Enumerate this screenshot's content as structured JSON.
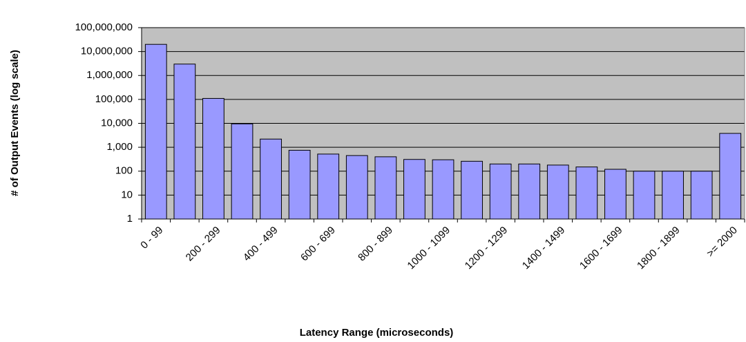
{
  "chart_data": {
    "type": "bar",
    "x_label": "Latency Range (microseconds)",
    "y_label": "# of Output Events (log scale)",
    "categories": [
      "0 - 99",
      null,
      "200 - 299",
      null,
      "400 - 499",
      null,
      "600 - 699",
      null,
      "800 - 899",
      null,
      "1000 - 1099",
      null,
      "1200 - 1299",
      null,
      "1400 - 1499",
      null,
      "1600 - 1699",
      null,
      "1800 - 1899",
      null,
      ">= 2000"
    ],
    "values": [
      20000000,
      3000000,
      110000,
      9500,
      2200,
      750,
      520,
      450,
      400,
      310,
      300,
      260,
      200,
      200,
      180,
      150,
      120,
      100,
      100,
      100,
      3800
    ],
    "color": "#9999ff",
    "log_scale": true,
    "grid": true,
    "ylim": [
      1,
      100000000
    ],
    "yticks": [
      1,
      10,
      100,
      {
        "value": 1000,
        "label": "1,000"
      },
      {
        "value": 10000,
        "label": "10,000"
      },
      {
        "value": 100000,
        "label": "100,000"
      },
      {
        "value": 1000000,
        "label": "1,000,000"
      },
      {
        "value": 10000000,
        "label": "10,000,000"
      },
      {
        "value": 100000000,
        "label": "100,000,000"
      }
    ]
  }
}
